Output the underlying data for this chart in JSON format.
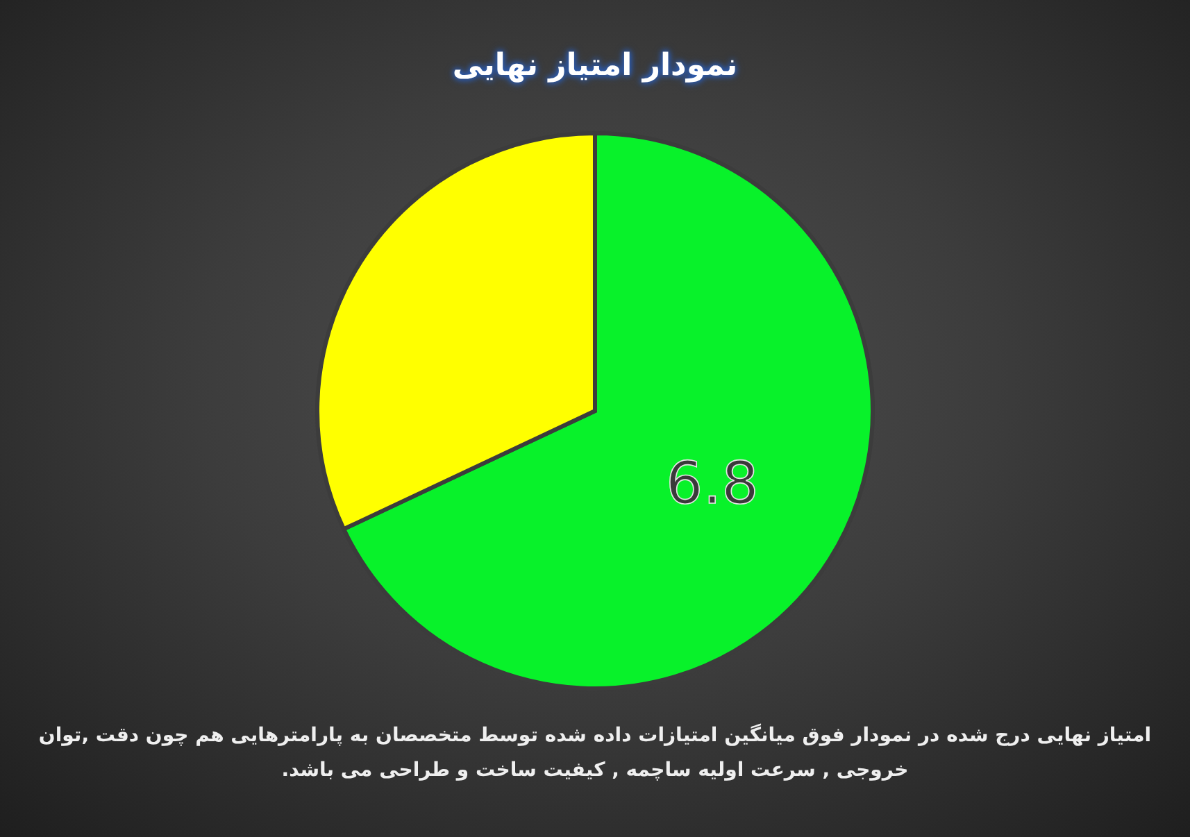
{
  "chart_data": {
    "type": "pie",
    "title": "نمودار امتیاز نهایی",
    "categories": [
      null,
      null
    ],
    "values": [
      6.8,
      3.2
    ],
    "colors": [
      "#08f22a",
      "#ffff00"
    ],
    "value_labels": [
      "6.8",
      null
    ],
    "annotations": [
      "امتیاز نهایی درج شده در نمودار فوق میانگین امتیازات داده شده توسط متخصصان به پارامترهایی هم چون دقت ,توان خروجی , سرعت اولیه ساچمه , کیفیت ساخت و طراحی می باشد."
    ]
  }
}
